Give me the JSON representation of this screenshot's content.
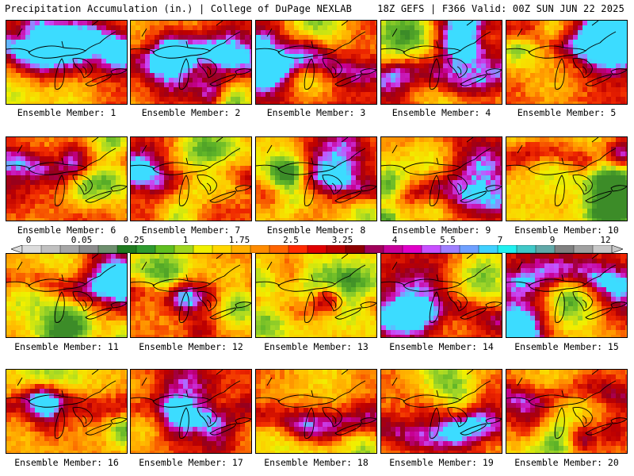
{
  "header": {
    "title": "Precipitation Accumulation (in.) | College of DuPage NEXLAB",
    "run_info": "18Z GEFS | F366 Valid: 00Z SUN JUN 22 2025"
  },
  "colorbar": {
    "labels": [
      "0",
      "0.05",
      "0.25",
      "1",
      "1.75",
      "2.5",
      "3.25",
      "4",
      "5.5",
      "7",
      "9",
      "12"
    ],
    "colors": [
      "#dcdcdc",
      "#c0c0c0",
      "#a6a6a6",
      "#8c8c8c",
      "#6e8f6e",
      "#1f7a1f",
      "#2e9a2e",
      "#5fbf1f",
      "#a0d61f",
      "#f0f000",
      "#ffd700",
      "#ffb000",
      "#ff8c00",
      "#ff6400",
      "#ff2a00",
      "#e00000",
      "#b80000",
      "#8c0000",
      "#a0005a",
      "#c8009a",
      "#e000c8",
      "#c850ff",
      "#a080ff",
      "#6fa0ff",
      "#40d0ff",
      "#20f0f0",
      "#40c8c8",
      "#60a8a8",
      "#808080",
      "#a0a0a0",
      "#c8c8c8"
    ]
  },
  "members": [
    {
      "label": "Ensemble Member: 1",
      "level": 0.62
    },
    {
      "label": "Ensemble Member: 2",
      "level": 0.48
    },
    {
      "label": "Ensemble Member: 3",
      "level": 0.66
    },
    {
      "label": "Ensemble Member: 4",
      "level": 0.6
    },
    {
      "label": "Ensemble Member: 5",
      "level": 0.64
    },
    {
      "label": "Ensemble Member: 6",
      "level": 0.5
    },
    {
      "label": "Ensemble Member: 7",
      "level": 0.63
    },
    {
      "label": "Ensemble Member: 8",
      "level": 0.46
    },
    {
      "label": "Ensemble Member: 9",
      "level": 0.62
    },
    {
      "label": "Ensemble Member: 10",
      "level": 0.4
    },
    {
      "label": "Ensemble Member: 11",
      "level": 0.52
    },
    {
      "label": "Ensemble Member: 12",
      "level": 0.54
    },
    {
      "label": "Ensemble Member: 13",
      "level": 0.45
    },
    {
      "label": "Ensemble Member: 14",
      "level": 0.66
    },
    {
      "label": "Ensemble Member: 15",
      "level": 0.55
    },
    {
      "label": "Ensemble Member: 16",
      "level": 0.5
    },
    {
      "label": "Ensemble Member: 17",
      "level": 0.6
    },
    {
      "label": "Ensemble Member: 18",
      "level": 0.58
    },
    {
      "label": "Ensemble Member: 19",
      "level": 0.55
    },
    {
      "label": "Ensemble Member: 20",
      "level": 0.56
    }
  ]
}
